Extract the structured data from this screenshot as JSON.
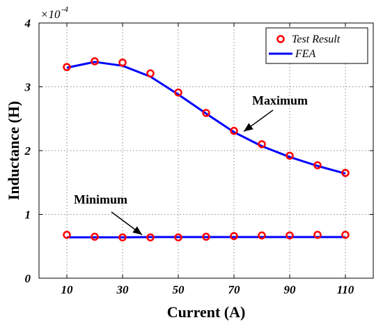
{
  "chart_data": {
    "type": "line",
    "title": "",
    "xlabel": "Current (A)",
    "ylabel": "Inductance (H)",
    "y_multiplier": "×10",
    "y_exponent": "-4",
    "xlim": [
      0,
      120
    ],
    "ylim": [
      0,
      4
    ],
    "xticks": [
      10,
      30,
      50,
      70,
      90,
      110
    ],
    "xtick_labels": [
      "10",
      "30",
      "50",
      "70",
      "90",
      "110"
    ],
    "yticks": [
      0,
      1,
      2,
      3,
      4
    ],
    "ytick_labels": [
      "0",
      "1",
      "2",
      "3",
      "4"
    ],
    "grid": true,
    "legend_position": "top-right",
    "colors": {
      "test": "#ff0000",
      "fea": "#0000ff"
    },
    "series": [
      {
        "name": "Test Result",
        "style": "markers",
        "x": [
          10,
          20,
          30,
          40,
          50,
          60,
          70,
          80,
          90,
          100,
          110
        ],
        "y": [
          3.31,
          3.4,
          3.38,
          3.21,
          2.91,
          2.59,
          2.31,
          2.1,
          1.92,
          1.77,
          1.65
        ]
      },
      {
        "name": "FEA",
        "style": "line",
        "x": [
          10,
          20,
          30,
          40,
          50,
          60,
          70,
          80,
          90,
          100,
          110
        ],
        "y": [
          3.3,
          3.39,
          3.33,
          3.16,
          2.88,
          2.58,
          2.29,
          2.07,
          1.9,
          1.76,
          1.64
        ]
      },
      {
        "name": "Test Result",
        "style": "markers",
        "x": [
          10,
          20,
          30,
          40,
          50,
          60,
          70,
          80,
          90,
          100,
          110
        ],
        "y": [
          0.68,
          0.65,
          0.64,
          0.64,
          0.64,
          0.65,
          0.66,
          0.67,
          0.67,
          0.68,
          0.68
        ]
      },
      {
        "name": "FEA",
        "style": "line",
        "x": [
          10,
          20,
          30,
          40,
          50,
          60,
          70,
          80,
          90,
          100,
          110
        ],
        "y": [
          0.64,
          0.64,
          0.64,
          0.645,
          0.645,
          0.645,
          0.645,
          0.645,
          0.645,
          0.645,
          0.645
        ]
      }
    ],
    "annotations": [
      {
        "text": "Maximum",
        "arrow_to": [
          73.5,
          2.3
        ]
      },
      {
        "text": "Minimum",
        "arrow_to": [
          37,
          0.68
        ]
      }
    ],
    "legend": [
      {
        "label": "Test Result",
        "marker": "circle"
      },
      {
        "label": "FEA",
        "marker": "line"
      }
    ]
  }
}
